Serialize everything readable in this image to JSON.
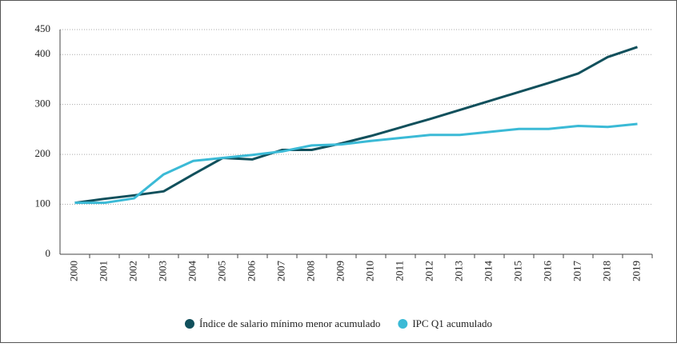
{
  "chart_data": {
    "type": "line",
    "categories": [
      "2000",
      "2001",
      "2002",
      "2003",
      "2004",
      "2005",
      "2006",
      "2007",
      "2008",
      "2009",
      "2010",
      "2011",
      "2012",
      "2013",
      "2014",
      "2015",
      "2016",
      "2017",
      "2018",
      "2019"
    ],
    "series": [
      {
        "name": "Índice de salario mínimo menor acumulado",
        "color": "#11505c",
        "values": [
          103,
          111,
          118,
          126,
          160,
          193,
          190,
          209,
          209,
          222,
          237,
          254,
          271,
          289,
          307,
          325,
          343,
          362,
          395,
          415
        ]
      },
      {
        "name": "IPC Q1 acumulado",
        "color": "#3bbad6",
        "values": [
          103,
          103,
          112,
          160,
          187,
          193,
          199,
          206,
          218,
          220,
          227,
          233,
          239,
          239,
          245,
          251,
          251,
          257,
          255,
          261
        ]
      }
    ],
    "ylim": [
      0,
      450
    ],
    "yticks": [
      0,
      100,
      200,
      300,
      400,
      450
    ],
    "grid": true,
    "legend": "bottom"
  }
}
